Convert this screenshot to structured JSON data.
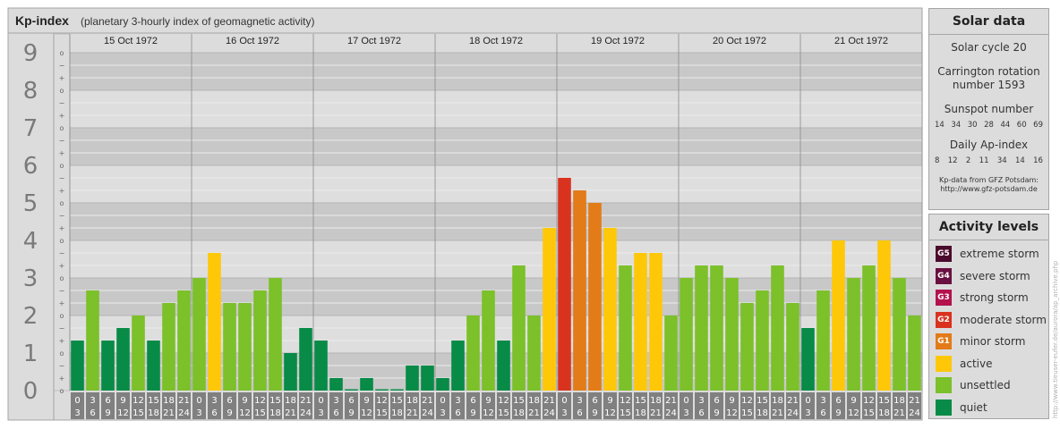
{
  "chart_data": {
    "type": "bar",
    "title": "Kp-index",
    "subtitle": "(planetary 3-hourly index of geomagnetic activity)",
    "ylim": [
      0,
      9
    ],
    "y_ticks": [
      "0",
      "1",
      "2",
      "3",
      "4",
      "5",
      "6",
      "7",
      "8",
      "9"
    ],
    "minor_tick_labels": [
      "o",
      "+",
      "−"
    ],
    "days": [
      "15 Oct 1972",
      "16 Oct 1972",
      "17 Oct 1972",
      "18 Oct 1972",
      "19 Oct 1972",
      "20 Oct 1972",
      "21 Oct 1972"
    ],
    "interval_start_hours": [
      "0",
      "3",
      "6",
      "9",
      "12",
      "15",
      "18",
      "21"
    ],
    "interval_end_hours": [
      "3",
      "6",
      "9",
      "12",
      "15",
      "18",
      "21",
      "24"
    ],
    "values": [
      [
        1.333,
        2.667,
        1.333,
        1.667,
        2.0,
        1.333,
        2.333,
        2.667
      ],
      [
        3.0,
        3.667,
        2.333,
        2.333,
        2.667,
        3.0,
        1.0,
        1.667
      ],
      [
        1.333,
        0.333,
        0.0,
        0.333,
        0.0,
        0.0,
        0.667,
        0.667
      ],
      [
        0.333,
        1.333,
        2.0,
        2.667,
        1.333,
        3.333,
        2.0,
        4.333
      ],
      [
        5.667,
        5.333,
        5.0,
        4.333,
        3.333,
        3.667,
        3.667,
        2.0
      ],
      [
        3.0,
        3.333,
        3.333,
        3.0,
        2.333,
        2.667,
        3.333,
        2.333
      ],
      [
        1.667,
        2.667,
        4.0,
        3.0,
        3.333,
        4.0,
        3.0,
        2.0
      ]
    ],
    "colors": {
      "G5": "#4a0b2c",
      "G4": "#6a1040",
      "G3": "#b3124e",
      "G2": "#d93320",
      "G1": "#e27b18",
      "active": "#fec809",
      "unsettled": "#7cc02a",
      "quiet": "#078b47"
    }
  },
  "solar": {
    "title": "Solar data",
    "cycle": "Solar cycle 20",
    "carrington_line1": "Carrington rotation",
    "carrington_line2": "number 1593",
    "sunspot_label": "Sunspot number",
    "sunspot_values": [
      "14",
      "34",
      "30",
      "28",
      "44",
      "60",
      "69"
    ],
    "ap_label": "Daily Ap-index",
    "ap_values": [
      "8",
      "12",
      "2",
      "11",
      "34",
      "14",
      "16"
    ],
    "credit_line1": "Kp-data from GFZ Potsdam:",
    "credit_line2": "http://www.gfz-potsdam.de"
  },
  "activity": {
    "title": "Activity levels",
    "levels": [
      {
        "code": "G5",
        "label": "extreme storm",
        "color": "#4a0b2c"
      },
      {
        "code": "G4",
        "label": "severe storm",
        "color": "#6a1040"
      },
      {
        "code": "G3",
        "label": "strong storm",
        "color": "#b3124e"
      },
      {
        "code": "G2",
        "label": "moderate storm",
        "color": "#d93320"
      },
      {
        "code": "G1",
        "label": "minor storm",
        "color": "#e27b18"
      },
      {
        "code": "",
        "label": "active",
        "color": "#fec809"
      },
      {
        "code": "",
        "label": "unsettled",
        "color": "#7cc02a"
      },
      {
        "code": "",
        "label": "quiet",
        "color": "#078b47"
      }
    ]
  },
  "side_credit": "http://www.tieuser-eufer.de/aurora/ap_archive.php"
}
